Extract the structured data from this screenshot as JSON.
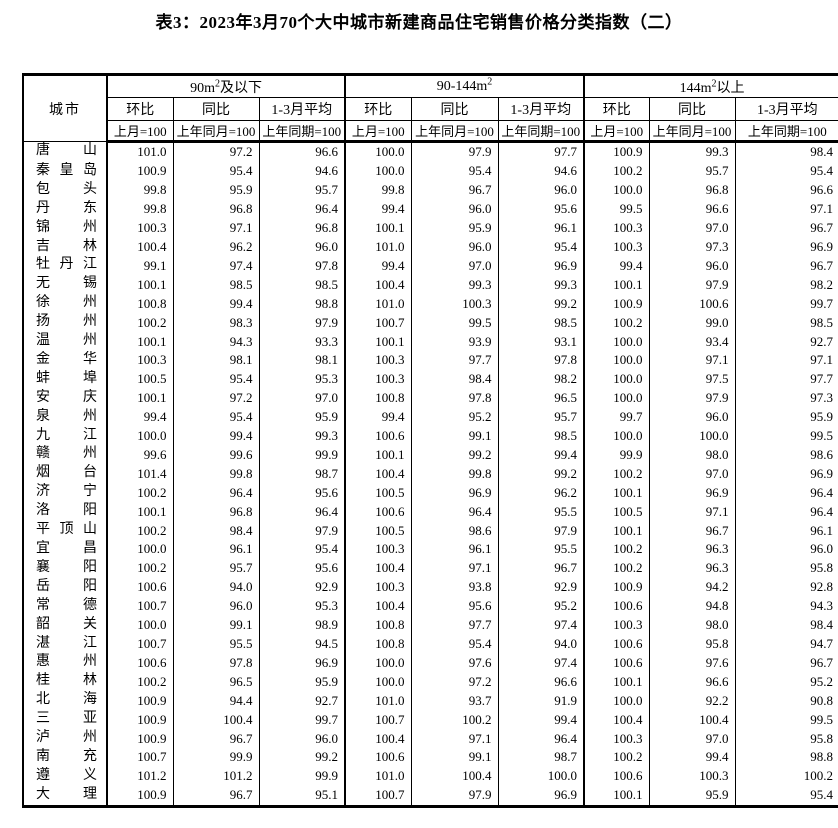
{
  "title": "表3：2023年3月70个大中城市新建商品住宅销售价格分类指数（二）",
  "table": {
    "city_header": "城市",
    "groups": [
      {
        "pre": "90m",
        "sup": "2",
        "post": "及以下"
      },
      {
        "pre": "90-144m",
        "sup": "2",
        "post": ""
      },
      {
        "pre": "144m",
        "sup": "2",
        "post": "以上"
      }
    ],
    "sub_headers": [
      {
        "label": "环比",
        "base": "上月=100"
      },
      {
        "label": "同比",
        "base": "上年同月=100"
      },
      {
        "label": "1-3月平均",
        "base": "上年同期=100"
      }
    ],
    "rows": [
      {
        "city": "唐山",
        "values": [
          "101.0",
          "97.2",
          "96.6",
          "100.0",
          "97.9",
          "97.7",
          "100.9",
          "99.3",
          "98.4"
        ]
      },
      {
        "city": "秦皇岛",
        "values": [
          "100.9",
          "95.4",
          "94.6",
          "100.0",
          "95.4",
          "94.6",
          "100.2",
          "95.7",
          "95.4"
        ]
      },
      {
        "city": "包头",
        "values": [
          "99.8",
          "95.9",
          "95.7",
          "99.8",
          "96.7",
          "96.0",
          "100.0",
          "96.8",
          "96.6"
        ]
      },
      {
        "city": "丹东",
        "values": [
          "99.8",
          "96.8",
          "96.4",
          "99.4",
          "96.0",
          "95.6",
          "99.5",
          "96.6",
          "97.1"
        ]
      },
      {
        "city": "锦州",
        "values": [
          "100.3",
          "97.1",
          "96.8",
          "100.1",
          "95.9",
          "96.1",
          "100.3",
          "97.0",
          "96.7"
        ]
      },
      {
        "city": "吉林",
        "values": [
          "100.4",
          "96.2",
          "96.0",
          "101.0",
          "96.0",
          "95.4",
          "100.3",
          "97.3",
          "96.9"
        ]
      },
      {
        "city": "牡丹江",
        "values": [
          "99.1",
          "97.4",
          "97.8",
          "99.4",
          "97.0",
          "96.9",
          "99.4",
          "96.0",
          "96.7"
        ]
      },
      {
        "city": "无锡",
        "values": [
          "100.1",
          "98.5",
          "98.5",
          "100.4",
          "99.3",
          "99.3",
          "100.1",
          "97.9",
          "98.2"
        ]
      },
      {
        "city": "徐州",
        "values": [
          "100.8",
          "99.4",
          "98.8",
          "101.0",
          "100.3",
          "99.2",
          "100.9",
          "100.6",
          "99.7"
        ]
      },
      {
        "city": "扬州",
        "values": [
          "100.2",
          "98.3",
          "97.9",
          "100.7",
          "99.5",
          "98.5",
          "100.2",
          "99.0",
          "98.5"
        ]
      },
      {
        "city": "温州",
        "values": [
          "100.1",
          "94.3",
          "93.3",
          "100.1",
          "93.9",
          "93.1",
          "100.0",
          "93.4",
          "92.7"
        ]
      },
      {
        "city": "金华",
        "values": [
          "100.3",
          "98.1",
          "98.1",
          "100.3",
          "97.7",
          "97.8",
          "100.0",
          "97.1",
          "97.1"
        ]
      },
      {
        "city": "蚌埠",
        "values": [
          "100.5",
          "95.4",
          "95.3",
          "100.3",
          "98.4",
          "98.2",
          "100.0",
          "97.5",
          "97.7"
        ]
      },
      {
        "city": "安庆",
        "values": [
          "100.1",
          "97.2",
          "97.0",
          "100.8",
          "97.8",
          "96.5",
          "100.0",
          "97.9",
          "97.3"
        ]
      },
      {
        "city": "泉州",
        "values": [
          "99.4",
          "95.4",
          "95.9",
          "99.4",
          "95.2",
          "95.7",
          "99.7",
          "96.0",
          "95.9"
        ]
      },
      {
        "city": "九江",
        "values": [
          "100.0",
          "99.4",
          "99.3",
          "100.6",
          "99.1",
          "98.5",
          "100.0",
          "100.0",
          "99.5"
        ]
      },
      {
        "city": "赣州",
        "values": [
          "99.6",
          "99.6",
          "99.9",
          "100.1",
          "99.2",
          "99.4",
          "99.9",
          "98.0",
          "98.6"
        ]
      },
      {
        "city": "烟台",
        "values": [
          "101.4",
          "99.8",
          "98.7",
          "100.4",
          "99.8",
          "99.2",
          "100.2",
          "97.0",
          "96.9"
        ]
      },
      {
        "city": "济宁",
        "values": [
          "100.2",
          "96.4",
          "95.6",
          "100.5",
          "96.9",
          "96.2",
          "100.1",
          "96.9",
          "96.4"
        ]
      },
      {
        "city": "洛阳",
        "values": [
          "100.1",
          "96.8",
          "96.4",
          "100.6",
          "96.4",
          "95.5",
          "100.5",
          "97.1",
          "96.4"
        ]
      },
      {
        "city": "平顶山",
        "values": [
          "100.2",
          "98.4",
          "97.9",
          "100.5",
          "98.6",
          "97.9",
          "100.1",
          "96.7",
          "96.1"
        ]
      },
      {
        "city": "宜昌",
        "values": [
          "100.0",
          "96.1",
          "95.4",
          "100.3",
          "96.1",
          "95.5",
          "100.2",
          "96.3",
          "96.0"
        ]
      },
      {
        "city": "襄阳",
        "values": [
          "100.2",
          "95.7",
          "95.6",
          "100.4",
          "97.1",
          "96.7",
          "100.2",
          "96.3",
          "95.8"
        ]
      },
      {
        "city": "岳阳",
        "values": [
          "100.6",
          "94.0",
          "92.9",
          "100.3",
          "93.8",
          "92.9",
          "100.9",
          "94.2",
          "92.8"
        ]
      },
      {
        "city": "常德",
        "values": [
          "100.7",
          "96.0",
          "95.3",
          "100.4",
          "95.6",
          "95.2",
          "100.6",
          "94.8",
          "94.3"
        ]
      },
      {
        "city": "韶关",
        "values": [
          "100.0",
          "99.1",
          "98.9",
          "100.8",
          "97.7",
          "97.4",
          "100.3",
          "98.0",
          "98.4"
        ]
      },
      {
        "city": "湛江",
        "values": [
          "100.7",
          "95.5",
          "94.5",
          "100.8",
          "95.4",
          "94.0",
          "100.6",
          "95.8",
          "94.7"
        ]
      },
      {
        "city": "惠州",
        "values": [
          "100.6",
          "97.8",
          "96.9",
          "100.0",
          "97.6",
          "97.4",
          "100.6",
          "97.6",
          "96.7"
        ]
      },
      {
        "city": "桂林",
        "values": [
          "100.2",
          "96.5",
          "95.9",
          "100.0",
          "97.2",
          "96.6",
          "100.1",
          "96.6",
          "95.2"
        ]
      },
      {
        "city": "北海",
        "values": [
          "100.9",
          "94.4",
          "92.7",
          "101.0",
          "93.7",
          "91.9",
          "100.0",
          "92.2",
          "90.8"
        ]
      },
      {
        "city": "三亚",
        "values": [
          "100.9",
          "100.4",
          "99.7",
          "100.7",
          "100.2",
          "99.4",
          "100.4",
          "100.4",
          "99.5"
        ]
      },
      {
        "city": "泸州",
        "values": [
          "100.9",
          "96.7",
          "96.0",
          "100.4",
          "97.1",
          "96.4",
          "100.3",
          "97.0",
          "95.8"
        ]
      },
      {
        "city": "南充",
        "values": [
          "100.7",
          "99.9",
          "99.2",
          "100.6",
          "99.1",
          "98.7",
          "100.2",
          "99.4",
          "98.8"
        ]
      },
      {
        "city": "遵义",
        "values": [
          "101.2",
          "101.2",
          "99.9",
          "101.0",
          "100.4",
          "100.0",
          "100.6",
          "100.3",
          "100.2"
        ]
      },
      {
        "city": "大理",
        "values": [
          "100.9",
          "96.7",
          "95.1",
          "100.7",
          "97.9",
          "96.9",
          "100.1",
          "95.9",
          "95.4"
        ]
      }
    ]
  }
}
